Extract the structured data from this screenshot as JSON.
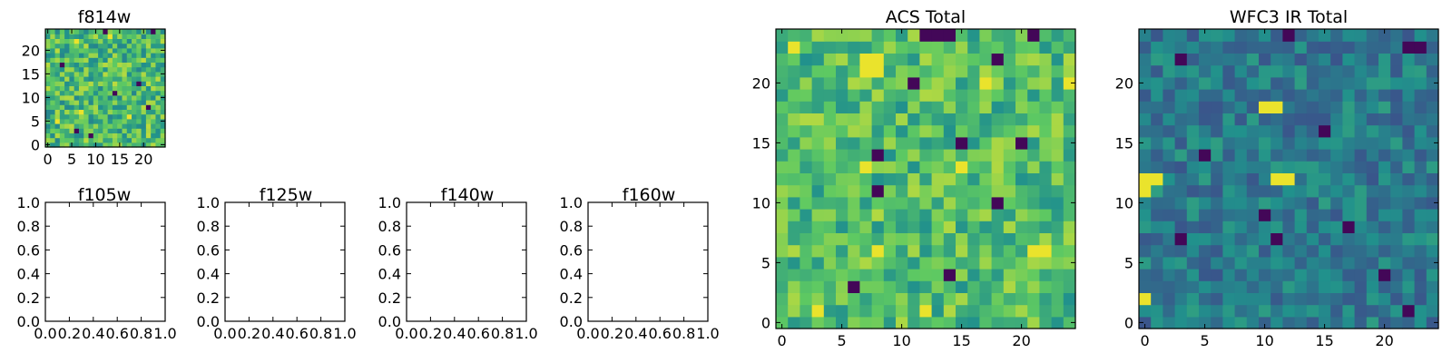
{
  "figure": {
    "colormap": "viridis",
    "colormap_stops": [
      "#440154",
      "#3b528b",
      "#21918c",
      "#5ec962",
      "#fde725"
    ],
    "background": "#ffffff"
  },
  "chart_data": [
    {
      "type": "heatmap",
      "title": "f814w",
      "grid_size": [
        25,
        25
      ],
      "xlim": [
        -0.5,
        24.5
      ],
      "ylim": [
        -0.5,
        24.5
      ],
      "x_ticks": [
        0,
        5,
        10,
        15,
        20
      ],
      "y_ticks": [
        0,
        5,
        10,
        15,
        20
      ],
      "x_tick_labels": [
        "0",
        "5",
        "10",
        "15",
        "20"
      ],
      "y_tick_labels": [
        "0",
        "5",
        "10",
        "15",
        "20"
      ],
      "style": "mixed",
      "seed": 814,
      "hot_spots": [
        [
          6,
          22
        ],
        [
          13,
          23
        ],
        [
          7,
          7
        ],
        [
          17,
          6
        ],
        [
          2,
          5
        ]
      ],
      "dark_spots": [
        [
          12,
          24
        ],
        [
          22,
          24
        ],
        [
          19,
          13
        ],
        [
          6,
          3
        ],
        [
          14,
          11
        ],
        [
          9,
          2
        ],
        [
          21,
          8
        ],
        [
          3,
          17
        ]
      ]
    },
    {
      "type": "heatmap",
      "title": "f105w",
      "empty": true,
      "xlim": [
        0,
        1
      ],
      "ylim": [
        0,
        1
      ],
      "x_tick_labels": [
        "0.0",
        "0.2",
        "0.4",
        "0.6",
        "0.8",
        "1.0"
      ],
      "y_tick_labels": [
        "0.0",
        "0.2",
        "0.4",
        "0.6",
        "0.8",
        "1.0"
      ]
    },
    {
      "type": "heatmap",
      "title": "f125w",
      "empty": true,
      "xlim": [
        0,
        1
      ],
      "ylim": [
        0,
        1
      ],
      "x_tick_labels": [
        "0.0",
        "0.2",
        "0.4",
        "0.6",
        "0.8",
        "1.0"
      ],
      "y_tick_labels": [
        "0.0",
        "0.2",
        "0.4",
        "0.6",
        "0.8",
        "1.0"
      ]
    },
    {
      "type": "heatmap",
      "title": "f140w",
      "empty": true,
      "xlim": [
        0,
        1
      ],
      "ylim": [
        0,
        1
      ],
      "x_tick_labels": [
        "0.0",
        "0.2",
        "0.4",
        "0.6",
        "0.8",
        "1.0"
      ],
      "y_tick_labels": [
        "0.0",
        "0.2",
        "0.4",
        "0.6",
        "0.8",
        "1.0"
      ]
    },
    {
      "type": "heatmap",
      "title": "f160w",
      "empty": true,
      "xlim": [
        0,
        1
      ],
      "ylim": [
        0,
        1
      ],
      "x_tick_labels": [
        "0.0",
        "0.2",
        "0.4",
        "0.6",
        "0.8",
        "1.0"
      ],
      "y_tick_labels": [
        "0.0",
        "0.2",
        "0.4",
        "0.6",
        "0.8",
        "1.0"
      ]
    },
    {
      "type": "heatmap",
      "title": "ACS Total",
      "grid_size": [
        25,
        25
      ],
      "xlim": [
        -0.5,
        24.5
      ],
      "ylim": [
        -0.5,
        24.5
      ],
      "x_ticks": [
        0,
        5,
        10,
        15,
        20
      ],
      "y_ticks": [
        0,
        5,
        10,
        15,
        20
      ],
      "x_tick_labels": [
        "0",
        "5",
        "10",
        "15",
        "20"
      ],
      "y_tick_labels": [
        "0",
        "5",
        "10",
        "15",
        "20"
      ],
      "style": "bright",
      "seed": 1001,
      "hot_spots": [
        [
          7,
          22
        ],
        [
          8,
          22
        ],
        [
          7,
          21
        ],
        [
          8,
          21
        ],
        [
          1,
          23
        ],
        [
          17,
          20
        ],
        [
          24,
          20
        ],
        [
          7,
          13
        ],
        [
          15,
          13
        ],
        [
          8,
          6
        ],
        [
          21,
          6
        ],
        [
          22,
          6
        ],
        [
          3,
          1
        ],
        [
          12,
          1
        ]
      ],
      "dark_spots": [
        [
          12,
          24
        ],
        [
          13,
          24
        ],
        [
          14,
          24
        ],
        [
          21,
          24
        ],
        [
          18,
          22
        ],
        [
          11,
          20
        ],
        [
          8,
          14
        ],
        [
          15,
          15
        ],
        [
          20,
          15
        ],
        [
          8,
          11
        ],
        [
          18,
          10
        ],
        [
          14,
          4
        ],
        [
          6,
          3
        ]
      ]
    },
    {
      "type": "heatmap",
      "title": "WFC3 IR Total",
      "grid_size": [
        25,
        25
      ],
      "xlim": [
        -0.5,
        24.5
      ],
      "ylim": [
        -0.5,
        24.5
      ],
      "x_ticks": [
        0,
        5,
        10,
        15,
        20
      ],
      "y_ticks": [
        0,
        5,
        10,
        15,
        20
      ],
      "x_tick_labels": [
        "0",
        "5",
        "10",
        "15",
        "20"
      ],
      "y_tick_labels": [
        "0",
        "5",
        "10",
        "15",
        "20"
      ],
      "style": "dark",
      "seed": 2002,
      "hot_spots": [
        [
          10,
          18
        ],
        [
          11,
          18
        ],
        [
          0,
          12
        ],
        [
          1,
          12
        ],
        [
          0,
          11
        ],
        [
          11,
          12
        ],
        [
          12,
          12
        ],
        [
          0,
          2
        ]
      ],
      "dark_spots": [
        [
          12,
          24
        ],
        [
          22,
          23
        ],
        [
          23,
          23
        ],
        [
          3,
          22
        ],
        [
          5,
          14
        ],
        [
          3,
          7
        ],
        [
          11,
          7
        ],
        [
          17,
          8
        ],
        [
          10,
          9
        ],
        [
          15,
          16
        ],
        [
          22,
          1
        ],
        [
          20,
          4
        ]
      ]
    }
  ]
}
